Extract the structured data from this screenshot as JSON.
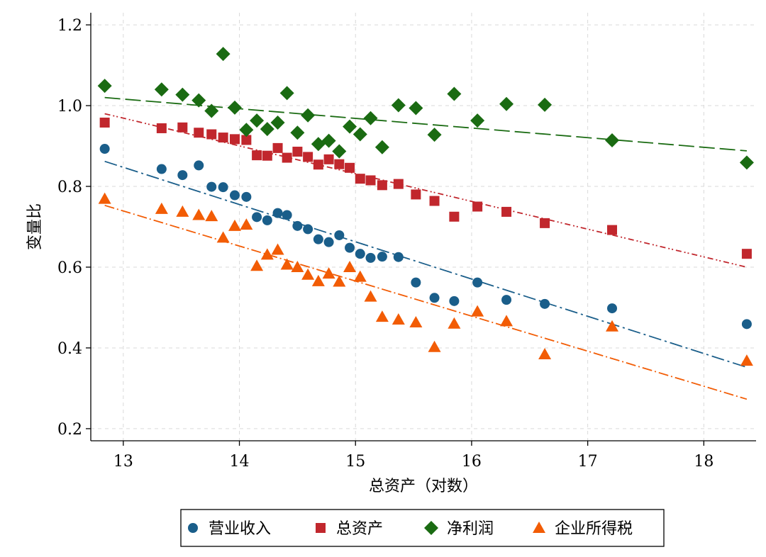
{
  "chart_data": {
    "type": "scatter",
    "xlabel": "总资产（对数）",
    "ylabel": "变量比",
    "xlim": [
      12.72,
      18.45
    ],
    "ylim": [
      0.17,
      1.23
    ],
    "xticks": [
      13,
      14,
      15,
      16,
      17,
      18
    ],
    "yticks": [
      0.2,
      0.4,
      0.6,
      0.8,
      1.0,
      1.2
    ],
    "ytick_labels": [
      "0.2",
      "0.4",
      "0.6",
      "0.8",
      "1.0",
      "1.2"
    ],
    "grid": true,
    "legend_position": "bottom",
    "series": [
      {
        "name": "营业收入",
        "marker": "circle",
        "color": "#1a5e8a",
        "points": [
          [
            12.84,
            0.893
          ],
          [
            13.33,
            0.843
          ],
          [
            13.51,
            0.828
          ],
          [
            13.65,
            0.852
          ],
          [
            13.76,
            0.799
          ],
          [
            13.86,
            0.798
          ],
          [
            13.96,
            0.778
          ],
          [
            14.06,
            0.774
          ],
          [
            14.15,
            0.724
          ],
          [
            14.24,
            0.716
          ],
          [
            14.33,
            0.734
          ],
          [
            14.41,
            0.729
          ],
          [
            14.5,
            0.702
          ],
          [
            14.59,
            0.694
          ],
          [
            14.68,
            0.669
          ],
          [
            14.77,
            0.662
          ],
          [
            14.86,
            0.679
          ],
          [
            14.95,
            0.648
          ],
          [
            15.04,
            0.633
          ],
          [
            15.13,
            0.623
          ],
          [
            15.23,
            0.626
          ],
          [
            15.37,
            0.625
          ],
          [
            15.52,
            0.562
          ],
          [
            15.68,
            0.524
          ],
          [
            15.85,
            0.516
          ],
          [
            16.05,
            0.562
          ],
          [
            16.3,
            0.519
          ],
          [
            16.63,
            0.509
          ],
          [
            17.21,
            0.498
          ],
          [
            18.37,
            0.459
          ]
        ],
        "fit": [
          [
            12.84,
            0.862
          ],
          [
            18.37,
            0.352
          ]
        ]
      },
      {
        "name": "总资产",
        "marker": "square",
        "color": "#c1272d",
        "points": [
          [
            12.84,
            0.958
          ],
          [
            13.33,
            0.944
          ],
          [
            13.51,
            0.946
          ],
          [
            13.65,
            0.933
          ],
          [
            13.76,
            0.929
          ],
          [
            13.86,
            0.921
          ],
          [
            13.96,
            0.917
          ],
          [
            14.06,
            0.915
          ],
          [
            14.15,
            0.877
          ],
          [
            14.24,
            0.876
          ],
          [
            14.33,
            0.895
          ],
          [
            14.41,
            0.871
          ],
          [
            14.5,
            0.886
          ],
          [
            14.59,
            0.873
          ],
          [
            14.68,
            0.854
          ],
          [
            14.77,
            0.867
          ],
          [
            14.86,
            0.855
          ],
          [
            14.95,
            0.846
          ],
          [
            15.04,
            0.819
          ],
          [
            15.13,
            0.815
          ],
          [
            15.23,
            0.803
          ],
          [
            15.37,
            0.806
          ],
          [
            15.52,
            0.78
          ],
          [
            15.68,
            0.764
          ],
          [
            15.85,
            0.725
          ],
          [
            16.05,
            0.75
          ],
          [
            16.3,
            0.737
          ],
          [
            16.63,
            0.709
          ],
          [
            17.21,
            0.692
          ],
          [
            18.37,
            0.633
          ]
        ],
        "fit": [
          [
            12.84,
            0.98
          ],
          [
            18.37,
            0.6
          ]
        ]
      },
      {
        "name": "净利润",
        "marker": "diamond",
        "color": "#1a6b12",
        "points": [
          [
            12.84,
            1.049
          ],
          [
            13.33,
            1.04
          ],
          [
            13.51,
            1.027
          ],
          [
            13.65,
            1.013
          ],
          [
            13.76,
            0.987
          ],
          [
            13.86,
            1.128
          ],
          [
            13.96,
            0.995
          ],
          [
            14.06,
            0.94
          ],
          [
            14.15,
            0.963
          ],
          [
            14.24,
            0.942
          ],
          [
            14.33,
            0.958
          ],
          [
            14.41,
            1.031
          ],
          [
            14.5,
            0.933
          ],
          [
            14.59,
            0.976
          ],
          [
            14.68,
            0.905
          ],
          [
            14.77,
            0.913
          ],
          [
            14.86,
            0.887
          ],
          [
            14.95,
            0.948
          ],
          [
            15.04,
            0.929
          ],
          [
            15.13,
            0.969
          ],
          [
            15.23,
            0.897
          ],
          [
            15.37,
            1.001
          ],
          [
            15.52,
            0.994
          ],
          [
            15.68,
            0.928
          ],
          [
            15.85,
            1.029
          ],
          [
            16.05,
            0.963
          ],
          [
            16.3,
            1.004
          ],
          [
            16.63,
            1.002
          ],
          [
            17.21,
            0.914
          ],
          [
            18.37,
            0.859
          ]
        ],
        "fit": [
          [
            12.84,
            1.02
          ],
          [
            18.37,
            0.888
          ]
        ]
      },
      {
        "name": "企业所得税",
        "marker": "triangle",
        "color": "#f25c05",
        "points": [
          [
            12.84,
            0.769
          ],
          [
            13.33,
            0.744
          ],
          [
            13.51,
            0.737
          ],
          [
            13.65,
            0.729
          ],
          [
            13.76,
            0.726
          ],
          [
            13.86,
            0.673
          ],
          [
            13.96,
            0.702
          ],
          [
            14.06,
            0.705
          ],
          [
            14.15,
            0.603
          ],
          [
            14.24,
            0.631
          ],
          [
            14.33,
            0.643
          ],
          [
            14.41,
            0.606
          ],
          [
            14.5,
            0.6
          ],
          [
            14.59,
            0.581
          ],
          [
            14.68,
            0.565
          ],
          [
            14.77,
            0.584
          ],
          [
            14.86,
            0.564
          ],
          [
            14.95,
            0.6
          ],
          [
            15.04,
            0.576
          ],
          [
            15.13,
            0.527
          ],
          [
            15.23,
            0.477
          ],
          [
            15.37,
            0.47
          ],
          [
            15.52,
            0.463
          ],
          [
            15.68,
            0.402
          ],
          [
            15.85,
            0.46
          ],
          [
            16.05,
            0.49
          ],
          [
            16.3,
            0.466
          ],
          [
            16.63,
            0.384
          ],
          [
            17.21,
            0.453
          ],
          [
            18.37,
            0.368
          ]
        ],
        "fit": [
          [
            12.84,
            0.753
          ],
          [
            18.37,
            0.273
          ]
        ]
      }
    ]
  }
}
